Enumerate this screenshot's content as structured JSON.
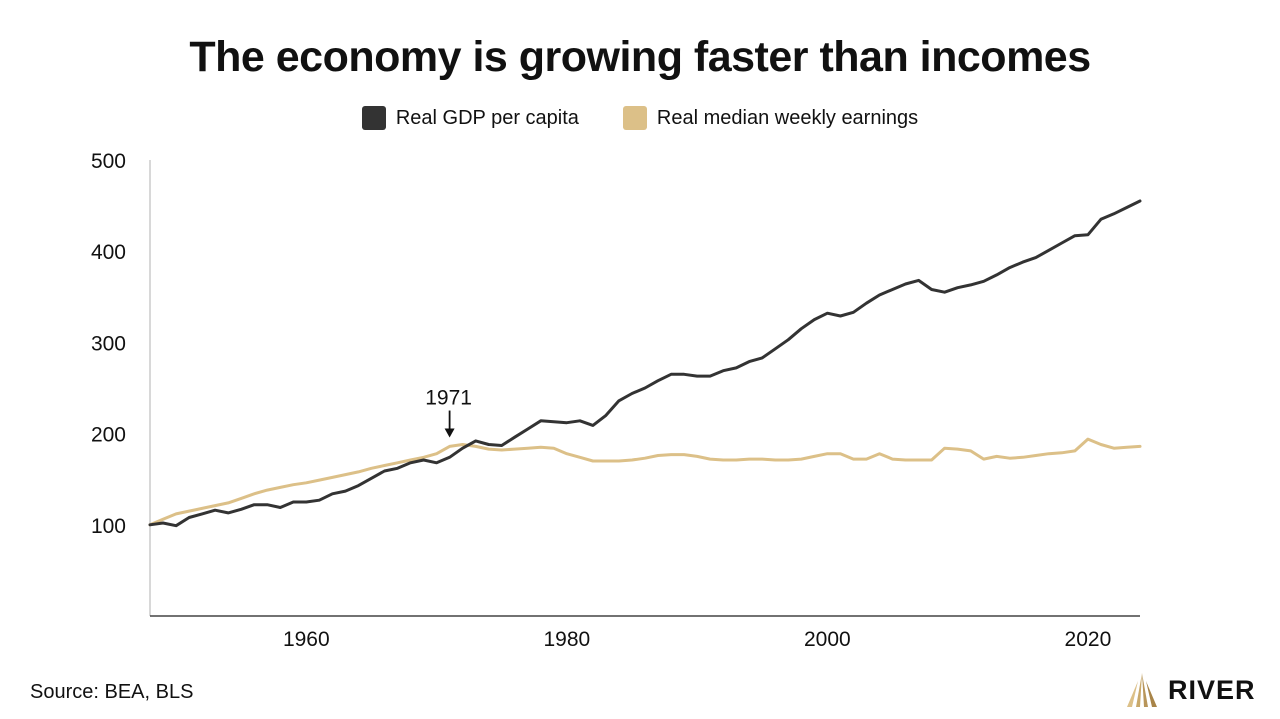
{
  "chart_data": {
    "type": "line",
    "title": "The economy is growing faster than incomes",
    "xlabel": "",
    "ylabel": "",
    "xlim": [
      1948,
      2024
    ],
    "ylim": [
      0,
      500
    ],
    "x_ticks": [
      1960,
      1980,
      2000,
      2020
    ],
    "y_ticks": [
      100,
      200,
      300,
      400,
      500
    ],
    "grid": false,
    "legend_position": "top-center",
    "annotation": {
      "label": "1971",
      "x": 1971,
      "y": 188
    },
    "source": "Source: BEA, BLS",
    "series": [
      {
        "name": "Real GDP per capita",
        "color": "#333333",
        "x": [
          1948,
          1949,
          1950,
          1951,
          1952,
          1953,
          1954,
          1955,
          1956,
          1957,
          1958,
          1959,
          1960,
          1961,
          1962,
          1963,
          1964,
          1965,
          1966,
          1967,
          1968,
          1969,
          1970,
          1971,
          1972,
          1973,
          1974,
          1975,
          1976,
          1977,
          1978,
          1979,
          1980,
          1981,
          1982,
          1983,
          1984,
          1985,
          1986,
          1987,
          1988,
          1989,
          1990,
          1991,
          1992,
          1993,
          1994,
          1995,
          1996,
          1997,
          1998,
          1999,
          2000,
          2001,
          2002,
          2003,
          2004,
          2005,
          2006,
          2007,
          2008,
          2009,
          2010,
          2011,
          2012,
          2013,
          2014,
          2015,
          2016,
          2017,
          2018,
          2019,
          2020,
          2021,
          2022,
          2023,
          2024
        ],
        "values": [
          100,
          102,
          99,
          108,
          112,
          116,
          113,
          117,
          122,
          122,
          119,
          125,
          125,
          127,
          134,
          137,
          143,
          151,
          159,
          162,
          168,
          171,
          168,
          174,
          184,
          192,
          188,
          187,
          196,
          205,
          214,
          213,
          212,
          214,
          209,
          220,
          236,
          244,
          250,
          258,
          265,
          265,
          263,
          263,
          269,
          272,
          279,
          283,
          293,
          303,
          315,
          325,
          332,
          329,
          333,
          343,
          352,
          358,
          364,
          368,
          358,
          355,
          360,
          363,
          367,
          374,
          382,
          388,
          393,
          401,
          409,
          417,
          418,
          435,
          441,
          448,
          455
        ]
      },
      {
        "name": "Real median weekly earnings",
        "color": "#dcc088",
        "x": [
          1948,
          1949,
          1950,
          1951,
          1952,
          1953,
          1954,
          1955,
          1956,
          1957,
          1958,
          1959,
          1960,
          1961,
          1962,
          1963,
          1964,
          1965,
          1966,
          1967,
          1968,
          1969,
          1970,
          1971,
          1972,
          1973,
          1974,
          1975,
          1976,
          1977,
          1978,
          1979,
          1980,
          1981,
          1982,
          1983,
          1984,
          1985,
          1986,
          1987,
          1988,
          1989,
          1990,
          1991,
          1992,
          1993,
          1994,
          1995,
          1996,
          1997,
          1998,
          1999,
          2000,
          2001,
          2002,
          2003,
          2004,
          2005,
          2006,
          2007,
          2008,
          2009,
          2010,
          2011,
          2012,
          2013,
          2014,
          2015,
          2016,
          2017,
          2018,
          2019,
          2020,
          2021,
          2022,
          2023,
          2024
        ],
        "values": [
          100,
          106,
          112,
          115,
          118,
          121,
          124,
          129,
          134,
          138,
          141,
          144,
          146,
          149,
          152,
          155,
          158,
          162,
          165,
          168,
          171,
          174,
          178,
          186,
          188,
          186,
          183,
          182,
          183,
          184,
          185,
          184,
          178,
          174,
          170,
          170,
          170,
          171,
          173,
          176,
          177,
          177,
          175,
          172,
          171,
          171,
          172,
          172,
          171,
          171,
          172,
          175,
          178,
          178,
          172,
          172,
          178,
          172,
          171,
          171,
          171,
          184,
          183,
          181,
          172,
          175,
          173,
          174,
          176,
          178,
          179,
          181,
          194,
          188,
          184,
          185,
          186
        ]
      }
    ]
  }
}
